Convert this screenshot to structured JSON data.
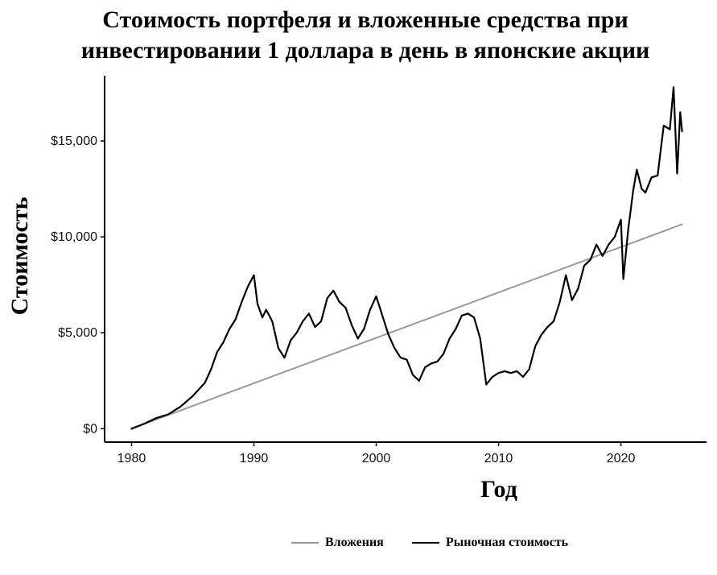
{
  "chart_data": {
    "type": "line",
    "title_lines": [
      "Стоимость портфеля и вложенные средства при",
      "инвестировании 1 доллара в день в японские акции"
    ],
    "xlabel": "Год",
    "ylabel": "Стоимость",
    "xlim": [
      1977.8,
      2027.0
    ],
    "ylim": [
      -700,
      18400
    ],
    "x_ticks": [
      1980,
      1990,
      2000,
      2010,
      2020
    ],
    "x_tick_labels": [
      "1980",
      "1990",
      "2000",
      "2010",
      "2020"
    ],
    "y_ticks": [
      0,
      5000,
      10000,
      15000
    ],
    "y_tick_labels": [
      "$0",
      "$5,000",
      "$10,000",
      "$15,000"
    ],
    "legend": {
      "position": "bottom",
      "entries": [
        "Вложения",
        "Рыночная стоимость"
      ]
    },
    "series": [
      {
        "name": "Вложения",
        "color": "#999999",
        "points": [
          [
            1980,
            0
          ],
          [
            2025,
            10650
          ]
        ]
      },
      {
        "name": "Рыночная стоимость",
        "color": "#000000",
        "points": [
          [
            1980,
            0
          ],
          [
            1981,
            250
          ],
          [
            1982,
            550
          ],
          [
            1983,
            750
          ],
          [
            1984,
            1150
          ],
          [
            1985,
            1700
          ],
          [
            1986,
            2400
          ],
          [
            1986.5,
            3100
          ],
          [
            1987,
            4000
          ],
          [
            1987.5,
            4500
          ],
          [
            1988,
            5200
          ],
          [
            1988.5,
            5700
          ],
          [
            1989,
            6600
          ],
          [
            1989.5,
            7400
          ],
          [
            1990,
            8000
          ],
          [
            1990.3,
            6500
          ],
          [
            1990.7,
            5800
          ],
          [
            1991,
            6200
          ],
          [
            1991.5,
            5600
          ],
          [
            1992,
            4200
          ],
          [
            1992.5,
            3700
          ],
          [
            1993,
            4600
          ],
          [
            1993.5,
            5000
          ],
          [
            1994,
            5600
          ],
          [
            1994.5,
            6000
          ],
          [
            1995,
            5300
          ],
          [
            1995.5,
            5600
          ],
          [
            1996,
            6800
          ],
          [
            1996.5,
            7200
          ],
          [
            1997,
            6600
          ],
          [
            1997.5,
            6300
          ],
          [
            1998,
            5400
          ],
          [
            1998.5,
            4700
          ],
          [
            1999,
            5200
          ],
          [
            1999.5,
            6200
          ],
          [
            2000,
            6900
          ],
          [
            2000.5,
            5900
          ],
          [
            2001,
            4900
          ],
          [
            2001.5,
            4200
          ],
          [
            2002,
            3700
          ],
          [
            2002.5,
            3600
          ],
          [
            2003,
            2800
          ],
          [
            2003.5,
            2500
          ],
          [
            2004,
            3200
          ],
          [
            2004.5,
            3400
          ],
          [
            2005,
            3500
          ],
          [
            2005.5,
            3900
          ],
          [
            2006,
            4700
          ],
          [
            2006.5,
            5200
          ],
          [
            2007,
            5900
          ],
          [
            2007.5,
            6000
          ],
          [
            2008,
            5800
          ],
          [
            2008.5,
            4700
          ],
          [
            2009,
            2300
          ],
          [
            2009.5,
            2700
          ],
          [
            2010,
            2900
          ],
          [
            2010.5,
            3000
          ],
          [
            2011,
            2900
          ],
          [
            2011.5,
            3000
          ],
          [
            2012,
            2700
          ],
          [
            2012.5,
            3100
          ],
          [
            2013,
            4300
          ],
          [
            2013.5,
            4900
          ],
          [
            2014,
            5300
          ],
          [
            2014.5,
            5600
          ],
          [
            2015,
            6600
          ],
          [
            2015.5,
            8000
          ],
          [
            2016,
            6700
          ],
          [
            2016.5,
            7300
          ],
          [
            2017,
            8500
          ],
          [
            2017.5,
            8800
          ],
          [
            2018,
            9600
          ],
          [
            2018.5,
            9000
          ],
          [
            2019,
            9600
          ],
          [
            2019.5,
            10000
          ],
          [
            2020,
            10900
          ],
          [
            2020.2,
            7800
          ],
          [
            2020.6,
            10400
          ],
          [
            2021,
            12400
          ],
          [
            2021.3,
            13500
          ],
          [
            2021.7,
            12500
          ],
          [
            2022,
            12300
          ],
          [
            2022.5,
            13100
          ],
          [
            2023,
            13200
          ],
          [
            2023.5,
            15800
          ],
          [
            2024,
            15600
          ],
          [
            2024.3,
            17800
          ],
          [
            2024.6,
            13300
          ],
          [
            2024.85,
            16500
          ],
          [
            2025,
            15500
          ]
        ]
      }
    ]
  }
}
